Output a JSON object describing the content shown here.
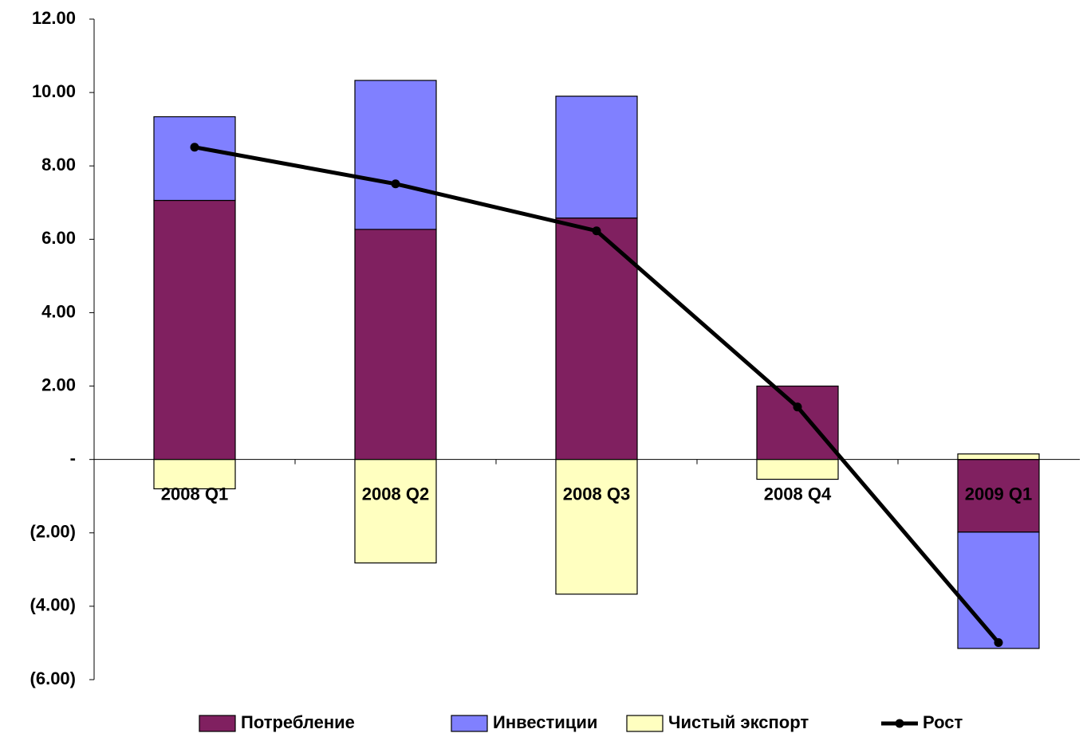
{
  "chart_data": {
    "type": "bar",
    "categories": [
      "2008 Q1",
      "2008 Q2",
      "2008 Q3",
      "2008 Q4",
      "2009 Q1"
    ],
    "series": [
      {
        "name": "Потребление",
        "color": "#802060",
        "values": [
          7.06,
          6.27,
          6.58,
          2.0,
          -1.98
        ]
      },
      {
        "name": "Инвестиции",
        "color": "#8080ff",
        "values": [
          2.28,
          4.06,
          3.32,
          0,
          -3.17
        ]
      },
      {
        "name": "Чистый экспорт",
        "color": "#ffffc0",
        "values": [
          -0.8,
          -2.82,
          -3.67,
          -0.54,
          0.15
        ]
      },
      {
        "name": "Рост",
        "color": "#000000",
        "type": "line",
        "values": [
          8.51,
          7.51,
          6.23,
          1.43,
          -4.99
        ]
      }
    ],
    "ylim": [
      -6,
      12
    ],
    "yticks": [
      {
        "value": 12,
        "label": "12.00"
      },
      {
        "value": 10,
        "label": "10.00"
      },
      {
        "value": 8,
        "label": "8.00"
      },
      {
        "value": 6,
        "label": "6.00"
      },
      {
        "value": 4,
        "label": "4.00"
      },
      {
        "value": 2,
        "label": "2.00"
      },
      {
        "value": 0,
        "label": "-"
      },
      {
        "value": -2,
        "label": "(2.00)"
      },
      {
        "value": -4,
        "label": "(4.00)"
      },
      {
        "value": -6,
        "label": "(6.00)"
      }
    ],
    "grid": false,
    "legend": "bottom"
  }
}
